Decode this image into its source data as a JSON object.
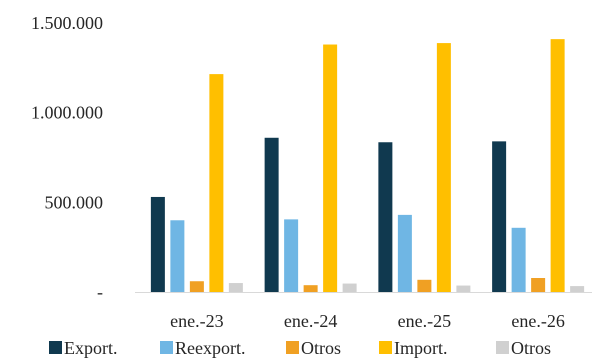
{
  "chart_data": {
    "type": "bar",
    "categories": [
      "ene.-23",
      "ene.-24",
      "ene.-25",
      "ene.-26"
    ],
    "series": [
      {
        "name": "Export.",
        "color": "#10394f",
        "values": [
          530000,
          860000,
          835000,
          840000
        ]
      },
      {
        "name": "Reexport.",
        "color": "#6fb6e4",
        "values": [
          400000,
          405000,
          430000,
          358000
        ]
      },
      {
        "name": "Otros",
        "color": "#f0a023",
        "values": [
          60000,
          38000,
          68000,
          78000
        ]
      },
      {
        "name": "Import.",
        "color": "#ffbf00",
        "values": [
          1215000,
          1380000,
          1388000,
          1410000
        ]
      },
      {
        "name": "Otros",
        "color": "#d0d0d0",
        "values": [
          50000,
          47000,
          36000,
          33000
        ]
      }
    ],
    "yticks": [
      {
        "value": 0,
        "label": "-"
      },
      {
        "value": 500000,
        "label": "500.000"
      },
      {
        "value": 1000000,
        "label": "1.000.000"
      },
      {
        "value": 1500000,
        "label": "1.500.000"
      }
    ],
    "ylim": [
      0,
      1500000
    ],
    "grid": false,
    "legend_position": "bottom",
    "title": "",
    "xlabel": "",
    "ylabel": ""
  }
}
